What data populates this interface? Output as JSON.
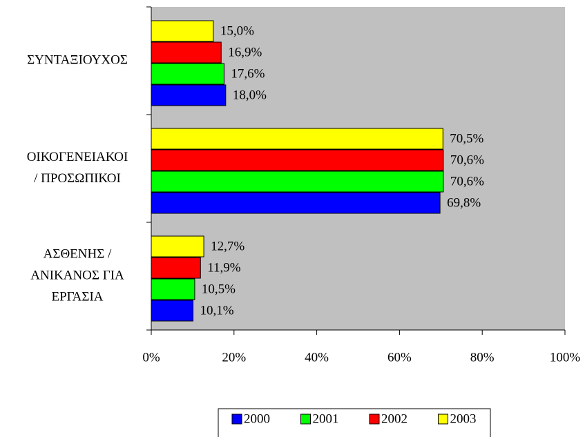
{
  "chart_data": {
    "type": "bar",
    "orientation": "horizontal",
    "categories": [
      [
        "ΣΥΝΤΑΞΙΟΥΧΟΣ"
      ],
      [
        "ΟΙΚΟΓΕΝΕΙΑΚΟΙ",
        "/ ΠΡΟΣΩΠΙΚΟΙ"
      ],
      [
        "ΑΣΘΕΝΗΣ /",
        "ΑΝΙΚΑΝΟΣ ΓΙΑ",
        "ΕΡΓΑΣΙΑ"
      ]
    ],
    "series": [
      {
        "name": "2000",
        "color": "#0000ff",
        "values": [
          18.0,
          69.8,
          10.1
        ],
        "value_labels": [
          "18,0%",
          "69,8%",
          "10,1%"
        ]
      },
      {
        "name": "2001",
        "color": "#00ff00",
        "values": [
          17.6,
          70.6,
          10.5
        ],
        "value_labels": [
          "17,6%",
          "70,6%",
          "10,5%"
        ]
      },
      {
        "name": "2002",
        "color": "#ff0000",
        "values": [
          16.9,
          70.6,
          11.9
        ],
        "value_labels": [
          "16,9%",
          "70,6%",
          "11,9%"
        ]
      },
      {
        "name": "2003",
        "color": "#ffff00",
        "values": [
          15.0,
          70.5,
          12.7
        ],
        "value_labels": [
          "15,0%",
          "70,5%",
          "12,7%"
        ]
      }
    ],
    "xlim": [
      0,
      100
    ],
    "xticks": [
      {
        "value": 0,
        "label": "0%"
      },
      {
        "value": 20,
        "label": "20%"
      },
      {
        "value": 40,
        "label": "40%"
      },
      {
        "value": 60,
        "label": "60%"
      },
      {
        "value": 80,
        "label": "80%"
      },
      {
        "value": 100,
        "label": "100%"
      }
    ],
    "plot_background": "#c0c0c0",
    "legend": "bottom"
  }
}
